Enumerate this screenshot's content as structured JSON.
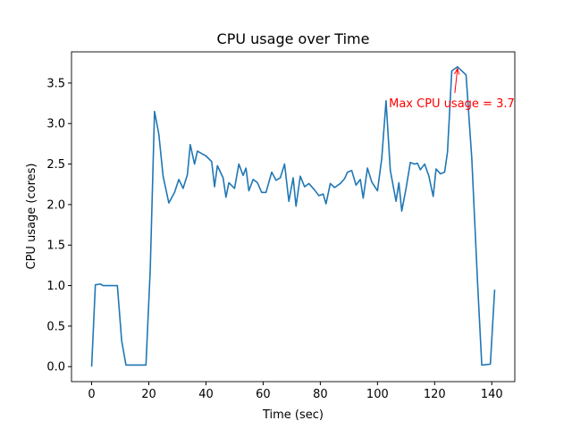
{
  "chart_data": {
    "type": "line",
    "title": "CPU usage over Time",
    "xlabel": "Time (sec)",
    "ylabel": "CPU usage (cores)",
    "color": "#1f77b4",
    "x": [
      0,
      1.3,
      3,
      4,
      9,
      10.5,
      12,
      19,
      20.5,
      22,
      23.5,
      25,
      27,
      29,
      30.5,
      32,
      33.5,
      34.5,
      36,
      37,
      38.5,
      40,
      42,
      43,
      44,
      46,
      47,
      48,
      50,
      51.5,
      53,
      54,
      55,
      56.5,
      58,
      59.5,
      61,
      63,
      64.5,
      66,
      67.5,
      69,
      70.5,
      71.5,
      73,
      74.5,
      76,
      78,
      79.5,
      81,
      82,
      83.5,
      85,
      87,
      88.5,
      89.5,
      91,
      92.5,
      94,
      95,
      96.5,
      98,
      100,
      101.5,
      103,
      104.5,
      106.5,
      107.5,
      108.5,
      110,
      111.5,
      113,
      114,
      115,
      116.5,
      118,
      119.5,
      120.5,
      122,
      123.5,
      124.5,
      126,
      128,
      131,
      133,
      135,
      136.5,
      139.5,
      141
    ],
    "values": [
      0,
      1.01,
      1.02,
      1.0,
      1.0,
      0.32,
      0.02,
      0.02,
      1.2,
      3.15,
      2.87,
      2.35,
      2.02,
      2.15,
      2.31,
      2.2,
      2.37,
      2.74,
      2.5,
      2.66,
      2.63,
      2.6,
      2.53,
      2.22,
      2.48,
      2.33,
      2.09,
      2.27,
      2.2,
      2.5,
      2.36,
      2.45,
      2.17,
      2.31,
      2.27,
      2.15,
      2.15,
      2.4,
      2.3,
      2.33,
      2.5,
      2.04,
      2.33,
      1.98,
      2.35,
      2.22,
      2.26,
      2.18,
      2.11,
      2.13,
      2.01,
      2.26,
      2.21,
      2.26,
      2.32,
      2.4,
      2.42,
      2.24,
      2.31,
      2.08,
      2.45,
      2.28,
      2.17,
      2.57,
      3.28,
      2.42,
      2.04,
      2.27,
      1.92,
      2.2,
      2.52,
      2.5,
      2.51,
      2.43,
      2.5,
      2.35,
      2.1,
      2.44,
      2.38,
      2.4,
      2.65,
      3.65,
      3.7,
      3.6,
      2.57,
      1.05,
      0.02,
      0.03,
      0.95
    ],
    "xlim": [
      -7.05,
      148.05
    ],
    "xticks": [
      0,
      20,
      40,
      60,
      80,
      100,
      120,
      140
    ],
    "ylim": [
      -0.185,
      3.885
    ],
    "yticks": [
      {
        "value": 0,
        "label": "0.0"
      },
      {
        "value": 0.5,
        "label": "0.5"
      },
      {
        "value": 1,
        "label": "1.0"
      },
      {
        "value": 1.5,
        "label": "1.5"
      },
      {
        "value": 2,
        "label": "2.0"
      },
      {
        "value": 2.5,
        "label": "2.5"
      },
      {
        "value": 3,
        "label": "3.0"
      },
      {
        "value": 3.5,
        "label": "3.5"
      }
    ],
    "annotation": {
      "text": "Max CPU usage = 3.7",
      "xy": [
        128,
        3.7
      ],
      "xytext": [
        104,
        3.2
      ],
      "color": "red"
    }
  }
}
